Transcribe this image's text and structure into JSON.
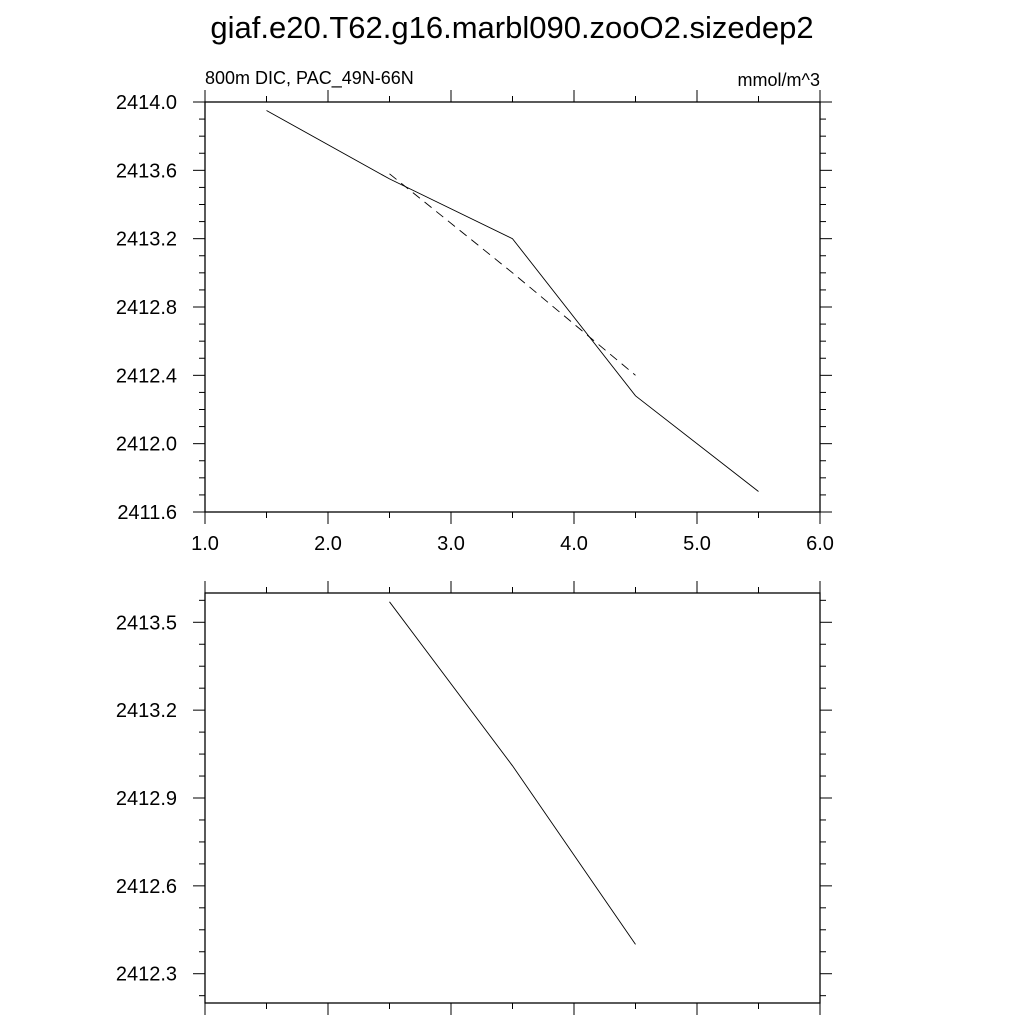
{
  "chart_data": [
    {
      "type": "line",
      "title": "giaf.e20.T62.g16.marbl090.zooO2.sizedep2",
      "left_label": "800m DIC, PAC_49N-66N",
      "right_label": "mmol/m^3",
      "xlim": [
        1.0,
        6.0
      ],
      "ylim": [
        2411.6,
        2414.0
      ],
      "x_ticks": [
        "1.0",
        "2.0",
        "3.0",
        "4.0",
        "5.0",
        "6.0"
      ],
      "y_ticks": [
        "2414.0",
        "2413.6",
        "2413.2",
        "2412.8",
        "2412.4",
        "2412.0",
        "2411.6"
      ],
      "grid": false,
      "series": [
        {
          "style": "solid",
          "x": [
            1.5,
            2.5,
            3.5,
            4.5,
            5.5
          ],
          "y": [
            2413.95,
            2413.55,
            2413.2,
            2412.28,
            2411.72
          ]
        },
        {
          "style": "dashed",
          "x": [
            2.5,
            3.5,
            4.5
          ],
          "y": [
            2413.58,
            2413.0,
            2412.4
          ]
        }
      ]
    },
    {
      "type": "line",
      "xlim": [
        1.0,
        6.0
      ],
      "ylim": [
        2412.2,
        2413.6
      ],
      "x_ticks": [],
      "y_ticks": [
        "2413.5",
        "2413.2",
        "2412.9",
        "2412.6",
        "2412.3"
      ],
      "grid": false,
      "series": [
        {
          "style": "solid",
          "x": [
            2.5,
            3.5,
            4.5
          ],
          "y": [
            2413.57,
            2413.01,
            2412.4
          ]
        }
      ]
    }
  ]
}
